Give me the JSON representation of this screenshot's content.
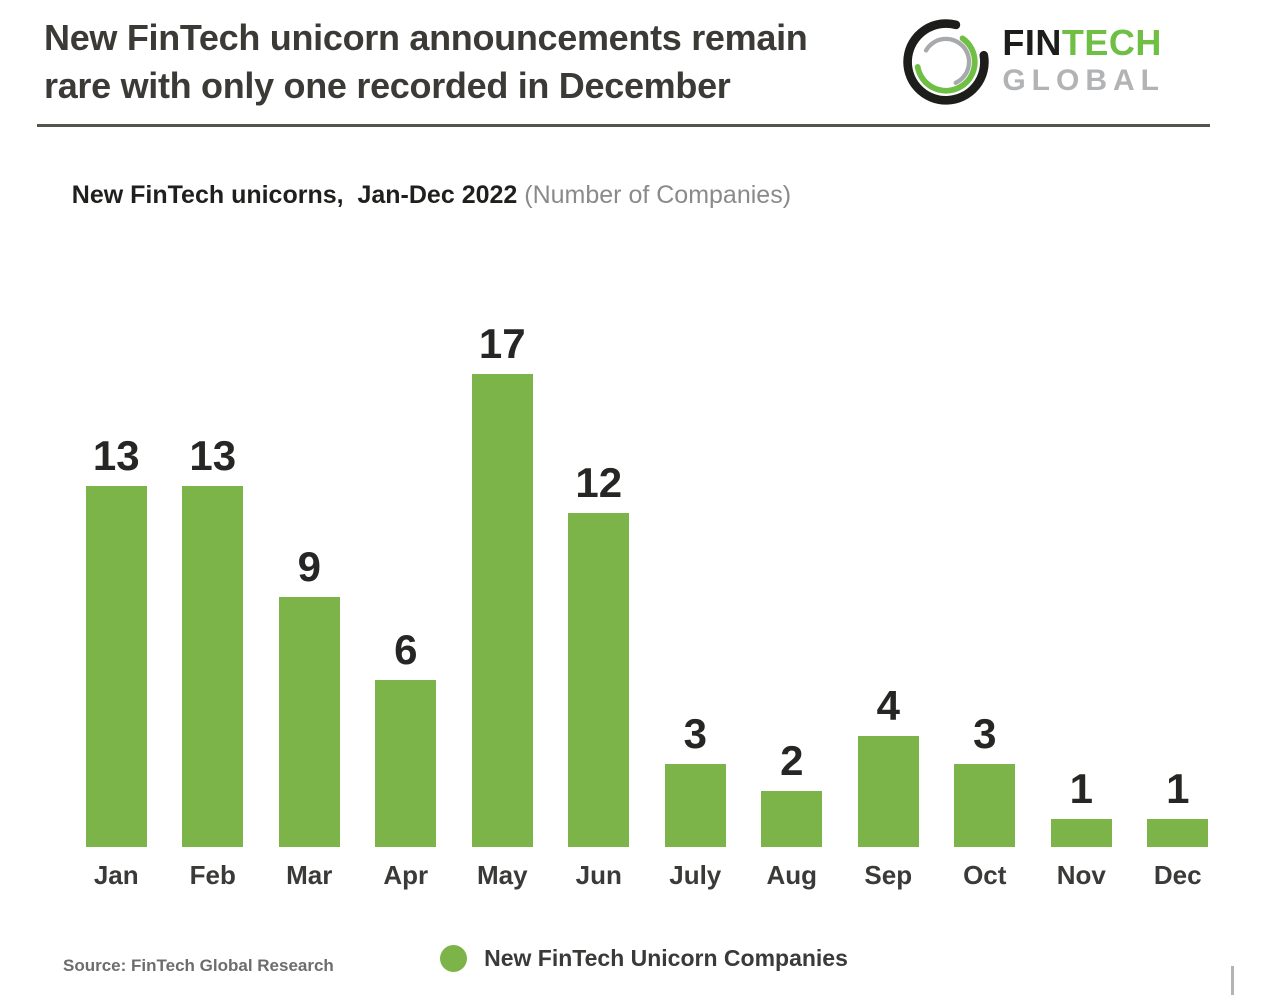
{
  "header": {
    "title_line1": "New FinTech unicorn announcements remain",
    "title_line2": "rare with only one recorded in December",
    "logo": {
      "word_fin": "FIN",
      "word_tech": "TECH",
      "word_global": "GLOBAL",
      "color_black": "#1d1d1b",
      "color_green": "#6fbf44",
      "color_gray": "#b1b3b5"
    }
  },
  "subtitle": {
    "bold": "New FinTech unicorns,  Jan-Dec 2022",
    "light": " (Number of Companies)"
  },
  "chart_data": {
    "type": "bar",
    "title": "New FinTech unicorns, Jan-Dec 2022 (Number of Companies)",
    "categories": [
      "Jan",
      "Feb",
      "Mar",
      "Apr",
      "May",
      "Jun",
      "July",
      "Aug",
      "Sep",
      "Oct",
      "Nov",
      "Dec"
    ],
    "values": [
      13,
      13,
      9,
      6,
      17,
      12,
      3,
      2,
      4,
      3,
      1,
      1
    ],
    "xlabel": "",
    "ylabel": "Number of Companies",
    "ylim": [
      0,
      18
    ],
    "grid": false,
    "data_labels": true,
    "bar_color": "#7db44a",
    "value_label_color": "#262624",
    "legend": {
      "label": "New FinTech Unicorn Companies",
      "marker_color": "#7db44a",
      "position": "bottom"
    }
  },
  "footer": {
    "source": "Source: FinTech Global Research"
  }
}
